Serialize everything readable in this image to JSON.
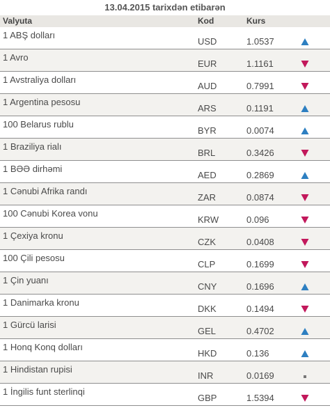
{
  "caption": "13.04.2015 tarixdən etibarən",
  "headers": {
    "currency": "Valyuta",
    "code": "Kod",
    "rate": "Kurs"
  },
  "colors": {
    "up": "#2d7fc1",
    "down": "#c2185b",
    "flat": "#777777"
  },
  "rows": [
    {
      "currency": "1 ABŞ dolları",
      "code": "USD",
      "rate": "1.0537",
      "trend": "up"
    },
    {
      "currency": "1 Avro",
      "code": "EUR",
      "rate": "1.1161",
      "trend": "down"
    },
    {
      "currency": "1 Avstraliya dolları",
      "code": "AUD",
      "rate": "0.7991",
      "trend": "down"
    },
    {
      "currency": "1 Argentina pesosu",
      "code": "ARS",
      "rate": "0.1191",
      "trend": "up"
    },
    {
      "currency": "100 Belarus rublu",
      "code": "BYR",
      "rate": "0.0074",
      "trend": "up"
    },
    {
      "currency": "1 Braziliya rialı",
      "code": "BRL",
      "rate": "0.3426",
      "trend": "down"
    },
    {
      "currency": "1 BƏƏ dirhəmi",
      "code": "AED",
      "rate": "0.2869",
      "trend": "up"
    },
    {
      "currency": "1 Cənubi Afrika randı",
      "code": "ZAR",
      "rate": "0.0874",
      "trend": "down"
    },
    {
      "currency": "100 Cənubi Korea vonu",
      "code": "KRW",
      "rate": "0.096",
      "trend": "down"
    },
    {
      "currency": "1 Çexiya kronu",
      "code": "CZK",
      "rate": "0.0408",
      "trend": "down"
    },
    {
      "currency": "100 Çili pesosu",
      "code": "CLP",
      "rate": "0.1699",
      "trend": "down"
    },
    {
      "currency": "1 Çin yuanı",
      "code": "CNY",
      "rate": "0.1696",
      "trend": "up"
    },
    {
      "currency": "1 Danimarka kronu",
      "code": "DKK",
      "rate": "0.1494",
      "trend": "down"
    },
    {
      "currency": "1 Gürcü larisi",
      "code": "GEL",
      "rate": "0.4702",
      "trend": "up"
    },
    {
      "currency": "1 Honq Konq dolları",
      "code": "HKD",
      "rate": "0.136",
      "trend": "up"
    },
    {
      "currency": "1 Hindistan rupisi",
      "code": "INR",
      "rate": "0.0169",
      "trend": "flat"
    },
    {
      "currency": "1 İngilis funt sterlinqi",
      "code": "GBP",
      "rate": "1.5394",
      "trend": "down"
    }
  ]
}
